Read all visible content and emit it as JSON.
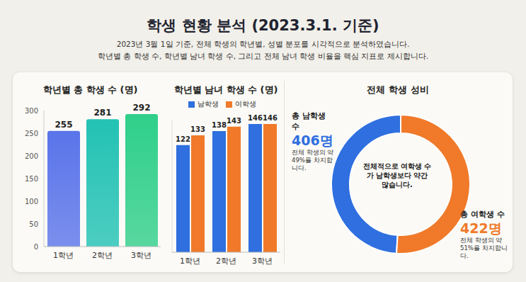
{
  "title": "학생 현황 분석 (2023.3.1. 기준)",
  "description": [
    "2023년 3월 1일 기준, 전체 학생의 학년별, 성별 분포를 시각적으로 분석하였습니다.",
    "학년별 총 학생 수, 학년별 남녀 학생 수, 그리고 전체 남녀 학생 비율을 핵심 지표로 제시합니다."
  ],
  "chart_data": [
    {
      "type": "bar",
      "title": "학년별 총 학생 수 (명)",
      "categories": [
        "1학년",
        "2학년",
        "3학년"
      ],
      "values": [
        255,
        281,
        292
      ],
      "colors": [
        "#5a74ea",
        "#22c2b4",
        "#2fcf8a"
      ],
      "ylim": [
        0,
        300
      ],
      "yticks": [
        0,
        50,
        100,
        150,
        200,
        250,
        300
      ],
      "grid": false,
      "data_labels": true
    },
    {
      "type": "bar",
      "title": "학년별 남녀 학생 수 (명)",
      "categories": [
        "1학년",
        "2학년",
        "3학년"
      ],
      "series": [
        {
          "name": "남학생",
          "color": "#2f6fdf",
          "values": [
            122,
            138,
            146
          ]
        },
        {
          "name": "여학생",
          "color": "#f07a2a",
          "values": [
            133,
            143,
            146
          ]
        }
      ],
      "ylim": [
        0,
        150
      ],
      "legend": "top",
      "data_labels": true,
      "tick_labels": "x",
      "grid": false
    },
    {
      "type": "pie",
      "title": "전체 학생 성비",
      "categories": [
        "총 남학생 수",
        "총 여학생 수"
      ],
      "values": [
        406,
        422
      ],
      "value_labels": [
        "406명",
        "422명"
      ],
      "colors": [
        "#2f6fdf",
        "#f07a2a"
      ],
      "annotations": [
        "전체 학생의 약 49%를 차지합니다.",
        "전체 학생의 약 51%를 차지합니다."
      ],
      "center_label": "전체적으로 여학생 수가 남학생보다 약간 많습니다."
    }
  ]
}
